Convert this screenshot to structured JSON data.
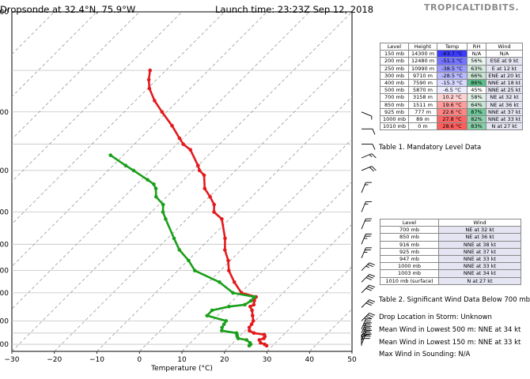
{
  "header": {
    "title_left": "Dropsonde at 32.4°N, 75.9°W",
    "title_right": "Launch time: 23:23Z Sep 12, 2018",
    "brand": "TROPICALTIDBITS."
  },
  "chart_data": {
    "type": "line",
    "subtype": "skew-T log-p",
    "xlabel": "Temperature (°C)",
    "xlim": [
      -30,
      50
    ],
    "x_ticks": [
      "−30",
      "−20",
      "−10",
      "0",
      "10",
      "20",
      "30",
      "40",
      "50"
    ],
    "y_ticks": [
      "00",
      "00",
      "00",
      "00",
      "00",
      "00",
      "00",
      "00",
      "00"
    ],
    "grid": true,
    "series": [
      {
        "role": "temperature",
        "color": "#e31a1c",
        "points": [
          [
            1010,
            28.6
          ],
          [
            1000,
            27.8
          ],
          [
            990,
            26.5
          ],
          [
            970,
            25.5
          ],
          [
            960,
            26.2
          ],
          [
            947,
            26.0
          ],
          [
            935,
            25.4
          ],
          [
            925,
            22.6
          ],
          [
            910,
            21.0
          ],
          [
            890,
            20.2
          ],
          [
            870,
            20.0
          ],
          [
            850,
            19.6
          ],
          [
            820,
            18.2
          ],
          [
            790,
            16.8
          ],
          [
            770,
            15.5
          ],
          [
            760,
            15.9
          ],
          [
            740,
            15.1
          ],
          [
            720,
            14.6
          ],
          [
            700,
            10.2
          ],
          [
            650,
            6.0
          ],
          [
            600,
            2.0
          ],
          [
            560,
            -0.5
          ],
          [
            520,
            -3.8
          ],
          [
            480,
            -6.5
          ],
          [
            420,
            -11.8
          ],
          [
            400,
            -15.3
          ],
          [
            380,
            -17.0
          ],
          [
            360,
            -19.8
          ],
          [
            340,
            -23.0
          ],
          [
            310,
            -26.3
          ],
          [
            300,
            -28.5
          ],
          [
            290,
            -30.0
          ],
          [
            260,
            -35.5
          ],
          [
            250,
            -38.5
          ],
          [
            240,
            -40.8
          ],
          [
            220,
            -45.5
          ],
          [
            200,
            -51.1
          ],
          [
            185,
            -55.5
          ],
          [
            170,
            -59.6
          ],
          [
            160,
            -61.8
          ],
          [
            150,
            -63.7
          ]
        ]
      },
      {
        "role": "dewpoint",
        "color": "#1a9f1a",
        "points": [
          [
            1010,
            24.5
          ],
          [
            1000,
            24.5
          ],
          [
            990,
            24.0
          ],
          [
            970,
            22.5
          ],
          [
            960,
            20.2
          ],
          [
            947,
            19.5
          ],
          [
            935,
            19.0
          ],
          [
            925,
            18.5
          ],
          [
            910,
            14.5
          ],
          [
            890,
            13.8
          ],
          [
            870,
            13.5
          ],
          [
            850,
            13.2
          ],
          [
            820,
            7.5
          ],
          [
            790,
            7.4
          ],
          [
            770,
            10.5
          ],
          [
            760,
            13.8
          ],
          [
            740,
            14.3
          ],
          [
            720,
            14.2
          ],
          [
            700,
            8.2
          ],
          [
            650,
            2.5
          ],
          [
            600,
            -6.0
          ],
          [
            560,
            -9.8
          ],
          [
            520,
            -14.5
          ],
          [
            480,
            -18.5
          ],
          [
            420,
            -25.0
          ],
          [
            400,
            -27.3
          ],
          [
            380,
            -29.0
          ],
          [
            360,
            -32.5
          ],
          [
            340,
            -34.5
          ],
          [
            330,
            -36.0
          ],
          [
            320,
            -38.5
          ],
          [
            300,
            -44.0
          ],
          [
            290,
            -47.0
          ],
          [
            270,
            -53.0
          ]
        ]
      }
    ]
  },
  "table1": {
    "headers": [
      "Level",
      "Height",
      "Temp",
      "RH",
      "Wind"
    ],
    "rows": [
      [
        "150 mb",
        "14300 m",
        "-63.7 °C",
        "N/A",
        "N/A"
      ],
      [
        "200 mb",
        "12480 m",
        "-51.1 °C",
        "56%",
        "ESE at 9 kt"
      ],
      [
        "250 mb",
        "10990 m",
        "-38.5 °C",
        "63%",
        "E at 12 kt"
      ],
      [
        "300 mb",
        "9710 m",
        "-28.5 °C",
        "66%",
        "ENE at 20 kt"
      ],
      [
        "400 mb",
        "7590 m",
        "-15.3 °C",
        "86%",
        "NNE at 18 kt"
      ],
      [
        "500 mb",
        "5870 m",
        "-6.5 °C",
        "45%",
        "NNE at 25 kt"
      ],
      [
        "700 mb",
        "3158 m",
        "10.2 °C",
        "58%",
        "NE at 32 kt"
      ],
      [
        "850 mb",
        "1511 m",
        "19.6 °C",
        "64%",
        "NE at 36 kt"
      ],
      [
        "925 mb",
        "777 m",
        "22.6 °C",
        "87%",
        "NNE at 37 kt"
      ],
      [
        "1000 mb",
        "89 m",
        "27.8 °C",
        "82%",
        "NNE at 33 kt"
      ],
      [
        "1010 mb",
        "0 m",
        "28.6 °C",
        "83%",
        "N at 27 kt"
      ]
    ],
    "temp_colors": [
      "#3b3bff",
      "#7373ff",
      "#9a9aff",
      "#b8b8ff",
      "#d8d8ff",
      "#ececff",
      "#ffd2d2",
      "#ff9c9c",
      "#ff8484",
      "#ff6464",
      "#ff5c5c"
    ],
    "rh_colors": [
      "#ffffff",
      "#e8f5ee",
      "#d3eadd",
      "#c8e4d3",
      "#5fbf8c",
      "#ffffff",
      "#dff0e6",
      "#c8e4d3",
      "#6fc89a",
      "#8ed1ad",
      "#84cda6"
    ],
    "caption": "Table 1. Mandatory Level Data"
  },
  "table2": {
    "headers": [
      "Level",
      "Wind"
    ],
    "rows": [
      [
        "700 mb",
        "NE at 32 kt"
      ],
      [
        "850 mb",
        "NE at 36 kt"
      ],
      [
        "916 mb",
        "NNE at 38 kt"
      ],
      [
        "925 mb",
        "NNE at 37 kt"
      ],
      [
        "947 mb",
        "NNE at 33 kt"
      ],
      [
        "1000 mb",
        "NNE at 33 kt"
      ],
      [
        "1003 mb",
        "NNE at 34 kt"
      ],
      [
        "1010 mb (surface)",
        "N at 27 kt"
      ]
    ],
    "wind_bg": "#e4e4f2",
    "caption": "Table 2. Significant Wind Data Below 700 mb"
  },
  "info": {
    "drop_location": "Drop Location in Storm: Unknown",
    "mean_500": "Mean Wind in Lowest 500 m:  NNE at 34 kt",
    "mean_150": "Mean Wind in Lowest 150 m:  NNE at 33 kt",
    "max_wind": "Max Wind in Sounding:  N/A"
  },
  "wind_barbs": [
    {
      "p": 200,
      "speed": 9,
      "dir": "ESE"
    },
    {
      "p": 225,
      "speed": 10,
      "dir": "E"
    },
    {
      "p": 250,
      "speed": 12,
      "dir": "E"
    },
    {
      "p": 275,
      "speed": 16,
      "dir": "ENE"
    },
    {
      "p": 300,
      "speed": 20,
      "dir": "ENE"
    },
    {
      "p": 350,
      "speed": 18,
      "dir": "NNE"
    },
    {
      "p": 400,
      "speed": 18,
      "dir": "NNE"
    },
    {
      "p": 450,
      "speed": 22,
      "dir": "NNE"
    },
    {
      "p": 500,
      "speed": 25,
      "dir": "NNE"
    },
    {
      "p": 550,
      "speed": 27,
      "dir": "NNE"
    },
    {
      "p": 600,
      "speed": 29,
      "dir": "NE"
    },
    {
      "p": 650,
      "speed": 30,
      "dir": "NE"
    },
    {
      "p": 700,
      "speed": 32,
      "dir": "NE"
    },
    {
      "p": 775,
      "speed": 34,
      "dir": "NE"
    },
    {
      "p": 850,
      "speed": 36,
      "dir": "NE"
    },
    {
      "p": 900,
      "speed": 37,
      "dir": "NNE"
    },
    {
      "p": 925,
      "speed": 37,
      "dir": "NNE"
    },
    {
      "p": 950,
      "speed": 33,
      "dir": "NNE"
    },
    {
      "p": 975,
      "speed": 33,
      "dir": "NNE"
    },
    {
      "p": 1000,
      "speed": 33,
      "dir": "NNE"
    },
    {
      "p": 1010,
      "speed": 27,
      "dir": "N"
    }
  ]
}
